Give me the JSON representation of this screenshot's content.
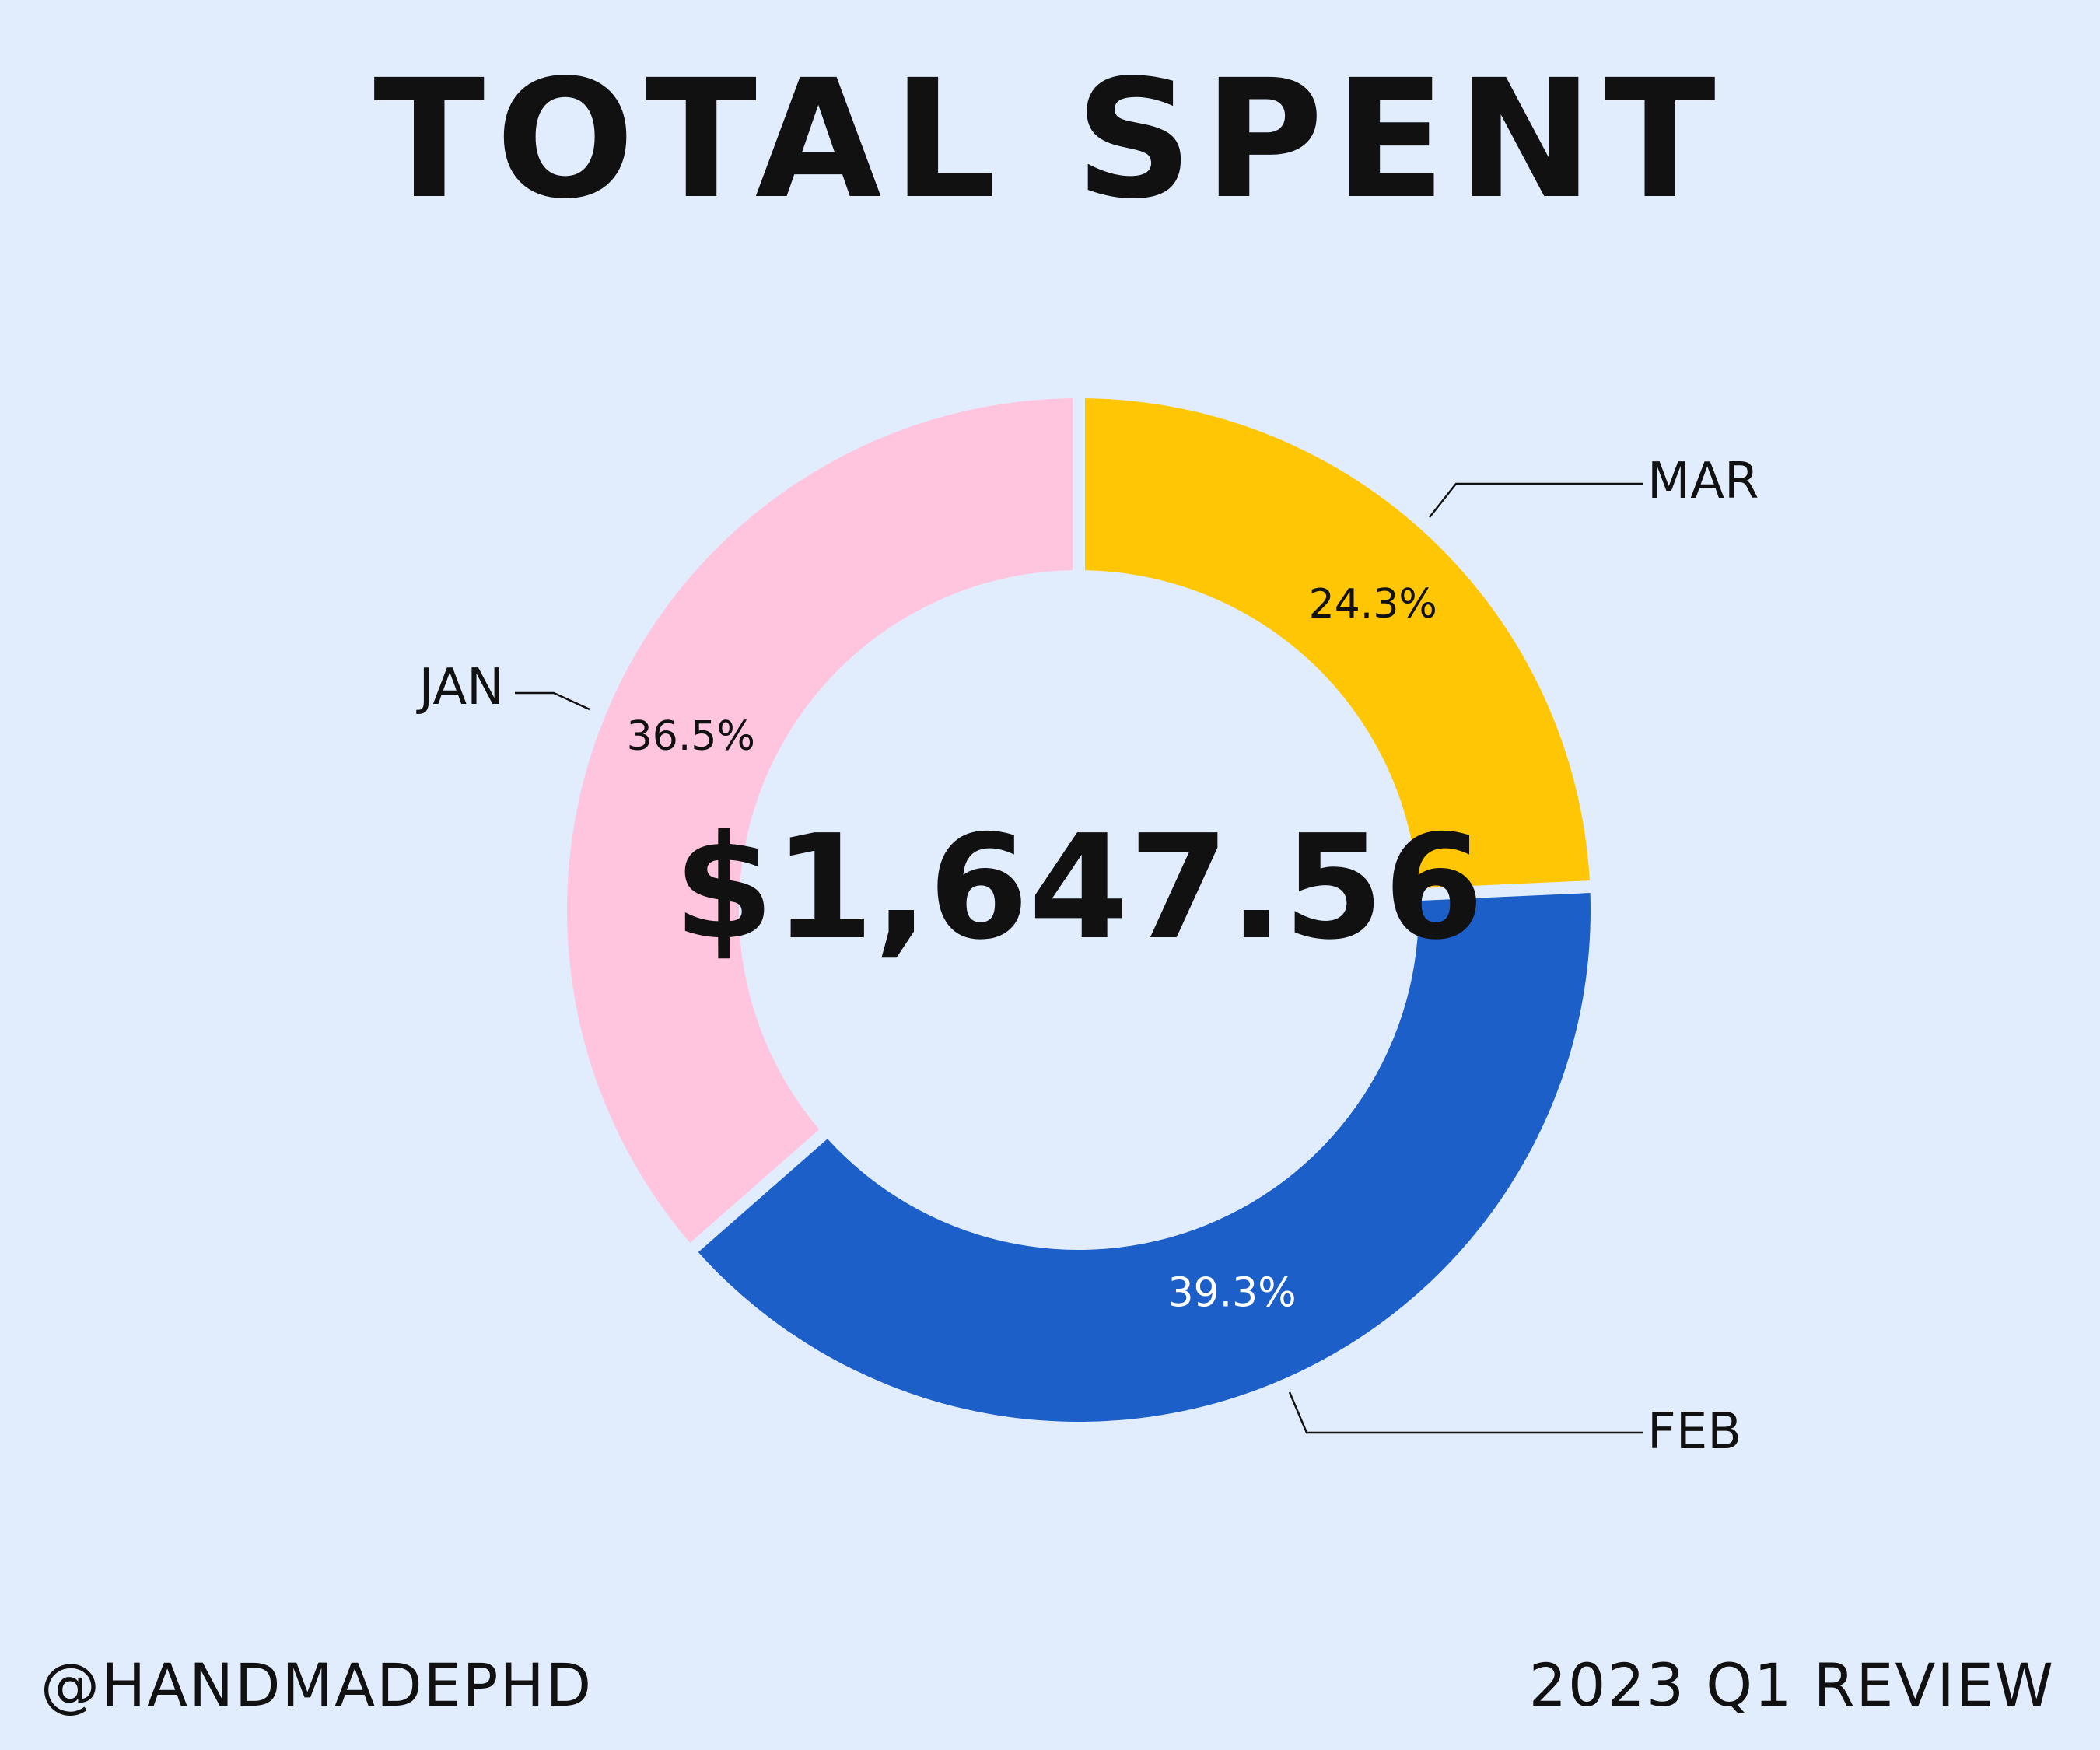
{
  "title": "TOTAL SPENT",
  "center_total": "$1,647.56",
  "footer": {
    "handle": "@HANDMADEPHD",
    "period": "2023 Q1 REVIEW"
  },
  "colors": {
    "background": "#e1edfd",
    "text": "#111111",
    "label_on_dark": "#ffffff"
  },
  "chart_data": {
    "type": "pie",
    "title": "TOTAL SPENT",
    "center_label": "$1,647.56",
    "slices": [
      {
        "label": "MAR",
        "percent": 24.3,
        "value_label": "24.3%",
        "color": "#ffc605"
      },
      {
        "label": "FEB",
        "percent": 39.3,
        "value_label": "39.3%",
        "color": "#1d5fc9"
      },
      {
        "label": "JAN",
        "percent": 36.5,
        "value_label": "36.5%",
        "color": "#ffc5de"
      }
    ],
    "start": "12 o'clock",
    "direction": "clockwise",
    "donut": true,
    "legend": "none",
    "slice_labels": "outside with leader lines"
  }
}
